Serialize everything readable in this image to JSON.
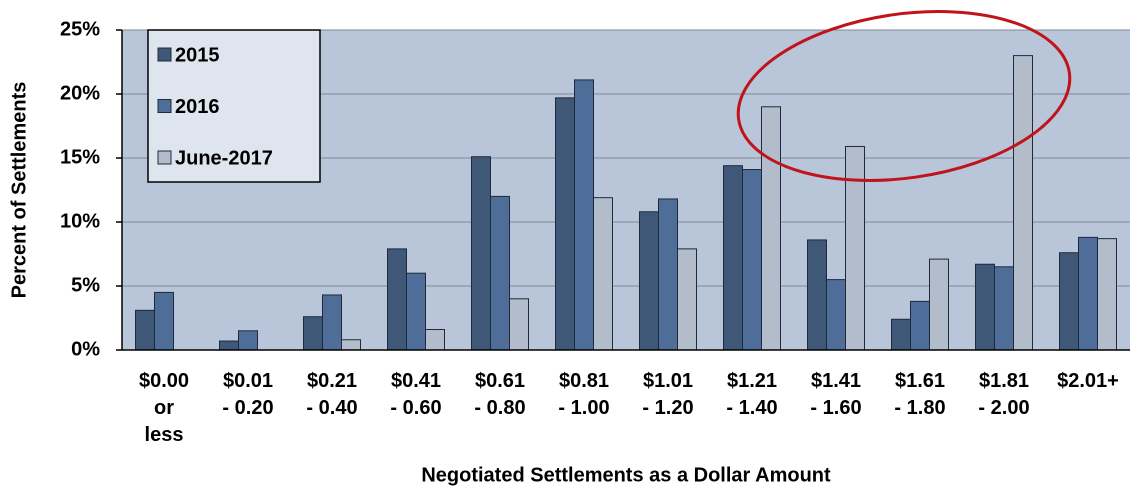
{
  "chart_data": {
    "type": "bar",
    "xlabel": "Negotiated Settlements as a Dollar Amount",
    "ylabel": "Percent of Settlements",
    "categories": [
      "$0.00\nor\nless",
      "$0.01\n- 0.20",
      "$0.21\n- 0.40",
      "$0.41\n- 0.60",
      "$0.61\n- 0.80",
      "$0.81\n- 1.00",
      "$1.01\n- 1.20",
      "$1.21\n- 1.40",
      "$1.41\n- 1.60",
      "$1.61\n- 1.80",
      "$1.81\n- 2.00",
      "$2.01+"
    ],
    "series": [
      {
        "name": "2015",
        "color": "#3f5878",
        "values": [
          3.1,
          0.7,
          2.6,
          7.9,
          15.1,
          19.7,
          10.8,
          14.4,
          8.6,
          2.4,
          6.7,
          7.6
        ]
      },
      {
        "name": "2016",
        "color": "#4f6d99",
        "values": [
          4.5,
          1.5,
          4.3,
          6.0,
          12.0,
          21.1,
          11.8,
          14.1,
          5.5,
          3.8,
          6.5,
          8.8
        ]
      },
      {
        "name": "June-2017",
        "color": "#b3bccb",
        "values": [
          0,
          0,
          0.8,
          1.6,
          4.0,
          11.9,
          7.9,
          19.0,
          15.9,
          7.1,
          23.0,
          8.7
        ]
      }
    ],
    "ylim": [
      0,
      25
    ],
    "yticks": [
      {
        "value": 0,
        "label": "0%"
      },
      {
        "value": 5,
        "label": "5%"
      },
      {
        "value": 10,
        "label": "10%"
      },
      {
        "value": 15,
        "label": "15%"
      },
      {
        "value": 20,
        "label": "20%"
      },
      {
        "value": 25,
        "label": "25%"
      }
    ],
    "grid": true,
    "legend": "upper left"
  }
}
